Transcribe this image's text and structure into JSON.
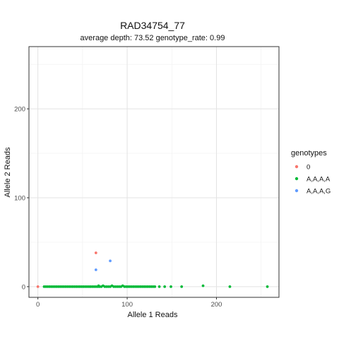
{
  "chart_data": {
    "type": "scatter",
    "title": "RAD34754_77",
    "subtitle": "average depth:  73.52  genotype_rate:  0.99",
    "xlabel": "Allele 1 Reads",
    "ylabel": "Allele 2 Reads",
    "xlim": [
      -10,
      270
    ],
    "ylim": [
      -12,
      270
    ],
    "x_major_ticks": [
      0,
      100,
      200
    ],
    "x_minor_ticks": [
      50,
      150,
      250
    ],
    "y_major_ticks": [
      0,
      100,
      200
    ],
    "y_minor_ticks": [
      50,
      150,
      250
    ],
    "grid": true,
    "legend": {
      "title": "genotypes",
      "position": "right"
    },
    "series": [
      {
        "name": "0",
        "color": "#F8766D",
        "points": [
          [
            0,
            0
          ],
          [
            65,
            38
          ]
        ]
      },
      {
        "name": "A,A,A,A",
        "color": "#00BA38",
        "points": [
          [
            7,
            0
          ],
          [
            9,
            0
          ],
          [
            11,
            0
          ],
          [
            13,
            0
          ],
          [
            15,
            0
          ],
          [
            17,
            0
          ],
          [
            19,
            0
          ],
          [
            21,
            0
          ],
          [
            23,
            0
          ],
          [
            25,
            0
          ],
          [
            27,
            0
          ],
          [
            29,
            0
          ],
          [
            31,
            0
          ],
          [
            33,
            0
          ],
          [
            35,
            0
          ],
          [
            37,
            0
          ],
          [
            39,
            0
          ],
          [
            41,
            0
          ],
          [
            43,
            0
          ],
          [
            45,
            0
          ],
          [
            47,
            0
          ],
          [
            49,
            0
          ],
          [
            51,
            0
          ],
          [
            53,
            0
          ],
          [
            55,
            0
          ],
          [
            57,
            0
          ],
          [
            59,
            0
          ],
          [
            61,
            0
          ],
          [
            63,
            0
          ],
          [
            65,
            0
          ],
          [
            67,
            0
          ],
          [
            68,
            1
          ],
          [
            69,
            0
          ],
          [
            71,
            0
          ],
          [
            73,
            1
          ],
          [
            75,
            0
          ],
          [
            77,
            0
          ],
          [
            79,
            0
          ],
          [
            81,
            0
          ],
          [
            83,
            1
          ],
          [
            85,
            0
          ],
          [
            87,
            0
          ],
          [
            89,
            0
          ],
          [
            91,
            0
          ],
          [
            93,
            0
          ],
          [
            95,
            1
          ],
          [
            97,
            0
          ],
          [
            99,
            0
          ],
          [
            101,
            0
          ],
          [
            103,
            0
          ],
          [
            105,
            0
          ],
          [
            107,
            0
          ],
          [
            109,
            0
          ],
          [
            111,
            0
          ],
          [
            113,
            0
          ],
          [
            115,
            0
          ],
          [
            117,
            0
          ],
          [
            119,
            0
          ],
          [
            121,
            0
          ],
          [
            123,
            0
          ],
          [
            125,
            0
          ],
          [
            127,
            0
          ],
          [
            129,
            0
          ],
          [
            131,
            0
          ],
          [
            136,
            0
          ],
          [
            142,
            0
          ],
          [
            149,
            0
          ],
          [
            161,
            0
          ],
          [
            185,
            1
          ],
          [
            215,
            0
          ],
          [
            257,
            0
          ]
        ]
      },
      {
        "name": "A,A,A,G",
        "color": "#619CFF",
        "points": [
          [
            65,
            19
          ],
          [
            81,
            29
          ]
        ]
      }
    ]
  }
}
